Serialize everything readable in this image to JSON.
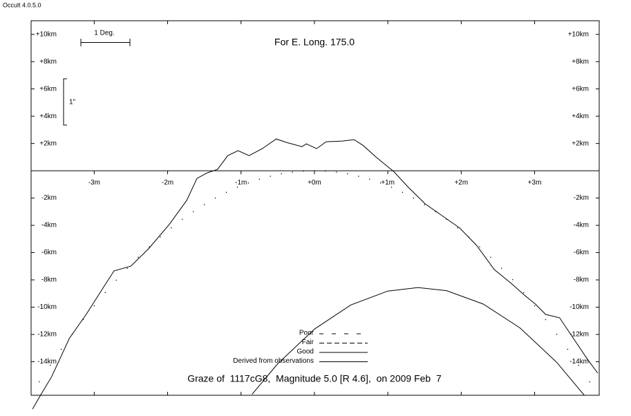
{
  "window_title": "Occult 4.0.5.0",
  "chart_data": {
    "type": "line",
    "title": "For E. Long. 175.0",
    "caption": "Graze of  1117cG8,  Magnitude 5.0 [R 4.6],  on 2009 Feb  7",
    "annotations": [
      "1 Deg.",
      "1\""
    ],
    "xlim": [
      -3.86,
      3.88
    ],
    "ylim": [
      -16.46,
      11
    ],
    "xticks": [
      {
        "value": -3,
        "label": "-3m"
      },
      {
        "value": -2,
        "label": "-2m"
      },
      {
        "value": -1,
        "label": "-1m"
      },
      {
        "value": 0,
        "label": "+0m"
      },
      {
        "value": 1,
        "label": "+1m"
      },
      {
        "value": 2,
        "label": "+2m"
      },
      {
        "value": 3,
        "label": "+3m"
      }
    ],
    "yticks": [
      {
        "value": 10,
        "label": "+10km"
      },
      {
        "value": 8,
        "label": "+8km"
      },
      {
        "value": 6,
        "label": "+6km"
      },
      {
        "value": 4,
        "label": "+4km"
      },
      {
        "value": 2,
        "label": "+2km"
      },
      {
        "value": -2,
        "label": "-2km"
      },
      {
        "value": -4,
        "label": "-4km"
      },
      {
        "value": -6,
        "label": "-6km"
      },
      {
        "value": -8,
        "label": "-8km"
      },
      {
        "value": -10,
        "label": "-10km"
      },
      {
        "value": -12,
        "label": "-12km"
      },
      {
        "value": -14,
        "label": "-14km"
      }
    ],
    "legend": [
      {
        "name": "Poor",
        "style": "dash-dot"
      },
      {
        "name": "Fair",
        "style": "dashed"
      },
      {
        "name": "Good",
        "style": "solid"
      },
      {
        "name": "Derived from observations",
        "style": "solid"
      }
    ],
    "series": [
      {
        "style": "solid",
        "color": "#000000",
        "x": [
          -3.84,
          -3.72,
          -3.58,
          -3.34,
          -3.11,
          -2.87,
          -2.73,
          -2.5,
          -2.26,
          -1.98,
          -1.74,
          -1.6,
          -1.46,
          -1.32,
          -1.18,
          -1.04,
          -0.89,
          -0.71,
          -0.52,
          -0.38,
          -0.17,
          -0.11,
          0.03,
          0.16,
          0.38,
          0.54,
          0.66,
          0.85,
          1.08,
          1.27,
          1.51,
          1.74,
          1.98,
          2.21,
          2.45,
          2.68,
          2.87,
          3.01,
          3.15,
          3.34,
          3.53,
          3.72,
          3.86
        ],
        "values": [
          -17.47,
          -16.35,
          -15.1,
          -12.3,
          -10.53,
          -8.51,
          -7.34,
          -6.99,
          -5.72,
          -3.95,
          -2.18,
          -0.56,
          -0.15,
          0.1,
          1.11,
          1.47,
          1.11,
          1.62,
          2.33,
          2.08,
          1.77,
          1.97,
          1.62,
          2.13,
          2.18,
          2.28,
          1.87,
          0.96,
          -0.05,
          -1.16,
          -2.43,
          -3.29,
          -4.2,
          -5.47,
          -7.24,
          -8.25,
          -9.16,
          -9.77,
          -10.53,
          -10.78,
          -12.3,
          -13.82,
          -14.84
        ]
      },
      {
        "style": "dotted",
        "color": "#000000",
        "x": [
          -3.75,
          -3.6,
          -3.45,
          -3.3,
          -3.15,
          -3,
          -2.85,
          -2.7,
          -2.55,
          -2.4,
          -2.25,
          -2.1,
          -1.95,
          -1.8,
          -1.65,
          -1.5,
          -1.35,
          -1.2,
          -1.05,
          -0.9,
          -0.75,
          -0.6,
          -0.45,
          -0.3,
          -0.15,
          0,
          0.15,
          0.3,
          0.45,
          0.6,
          0.75,
          0.9,
          1.05,
          1.2,
          1.35,
          1.5,
          1.65,
          1.8,
          1.95,
          2.1,
          2.25,
          2.4,
          2.55,
          2.7,
          2.85,
          3,
          3.15,
          3.3,
          3.45,
          3.6,
          3.75
        ],
        "values": [
          -15.47,
          -14.26,
          -13.09,
          -11.98,
          -10.91,
          -9.9,
          -8.93,
          -8.02,
          -7.15,
          -6.34,
          -5.57,
          -4.85,
          -4.18,
          -3.56,
          -3,
          -2.48,
          -2,
          -1.58,
          -1.21,
          -0.89,
          -0.62,
          -0.4,
          -0.22,
          -0.1,
          -0.02,
          0,
          -0.02,
          -0.1,
          -0.22,
          -0.4,
          -0.62,
          -0.89,
          -1.21,
          -1.58,
          -2,
          -2.48,
          -3,
          -3.56,
          -4.18,
          -4.85,
          -5.57,
          -6.34,
          -7.15,
          -7.98,
          -8.93,
          -9.9,
          -10.91,
          -11.98,
          -13.09,
          -14.26,
          -15.47
        ]
      },
      {
        "style": "solid",
        "color": "#000000",
        "x": [
          -0.85,
          -0.5,
          0,
          0.5,
          1,
          1.41,
          1.8,
          2.3,
          2.8,
          3.3,
          3.72
        ],
        "values": [
          -16.39,
          -14.15,
          -11.61,
          -9.83,
          -8.82,
          -8.56,
          -8.79,
          -9.77,
          -11.52,
          -14.04,
          -16.74
        ]
      }
    ]
  }
}
